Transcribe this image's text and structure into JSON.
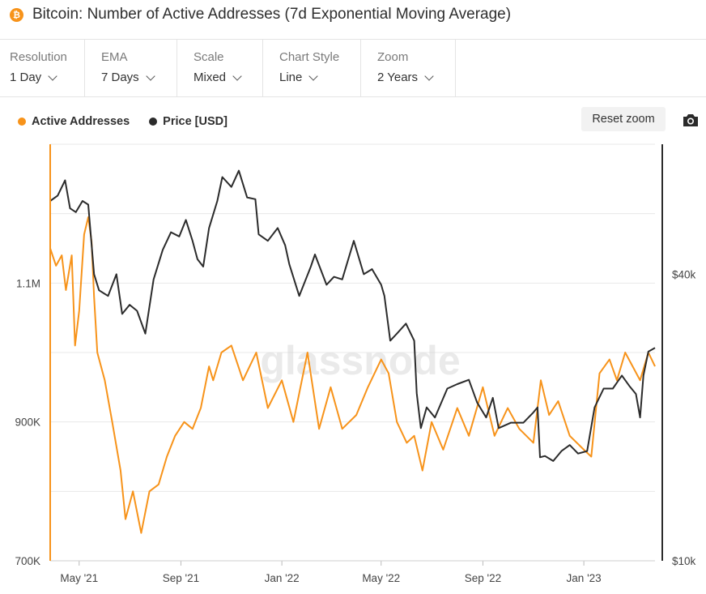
{
  "header": {
    "coin_icon": "bitcoin-icon",
    "coin_glyph": "₿",
    "title": "Bitcoin: Number of Active Addresses (7d Exponential Moving Average)"
  },
  "toolbar": {
    "controls": [
      {
        "label": "Resolution",
        "value": "1 Day"
      },
      {
        "label": "EMA",
        "value": "7 Days"
      },
      {
        "label": "Scale",
        "value": "Mixed"
      },
      {
        "label": "Chart Style",
        "value": "Line"
      },
      {
        "label": "Zoom",
        "value": "2 Years"
      }
    ]
  },
  "legend": [
    {
      "label": "Active Addresses",
      "color": "#f7931a"
    },
    {
      "label": "Price [USD]",
      "color": "#2b2b2b"
    }
  ],
  "actions": {
    "reset_zoom": "Reset zoom",
    "camera_icon": "camera-icon"
  },
  "watermark": "glassnode",
  "chart_data": {
    "type": "line",
    "x_range": [
      "2021-03-27",
      "2023-03-28"
    ],
    "x_ticks": [
      "May '21",
      "Sep '21",
      "Jan '22",
      "May '22",
      "Sep '22",
      "Jan '23"
    ],
    "y_left": {
      "scale": "linear",
      "ylim": [
        700000,
        1300000
      ],
      "ticks": [
        700000,
        900000,
        1100000
      ],
      "tick_labels": [
        "700K",
        "900K",
        "1.1M"
      ]
    },
    "y_right": {
      "scale": "log",
      "ylim": [
        10000,
        75000
      ],
      "ticks": [
        10000,
        40000
      ],
      "tick_labels": [
        "$10k",
        "$40k"
      ]
    },
    "grid": true,
    "legend_position": "top-left",
    "series": [
      {
        "name": "Active Addresses",
        "axis": "left",
        "color": "#f7931a",
        "x": [
          "2021-03-27",
          "2021-04-03",
          "2021-04-10",
          "2021-04-15",
          "2021-04-22",
          "2021-04-26",
          "2021-05-01",
          "2021-05-07",
          "2021-05-12",
          "2021-05-16",
          "2021-05-19",
          "2021-05-23",
          "2021-06-01",
          "2021-06-10",
          "2021-06-20",
          "2021-06-26",
          "2021-07-05",
          "2021-07-15",
          "2021-07-25",
          "2021-08-05",
          "2021-08-15",
          "2021-08-25",
          "2021-09-05",
          "2021-09-15",
          "2021-09-25",
          "2021-10-05",
          "2021-10-10",
          "2021-10-20",
          "2021-11-01",
          "2021-11-15",
          "2021-12-01",
          "2021-12-15",
          "2022-01-01",
          "2022-01-15",
          "2022-02-01",
          "2022-02-15",
          "2022-03-01",
          "2022-03-15",
          "2022-04-01",
          "2022-04-15",
          "2022-05-01",
          "2022-05-10",
          "2022-05-20",
          "2022-06-01",
          "2022-06-10",
          "2022-06-20",
          "2022-07-01",
          "2022-07-15",
          "2022-08-01",
          "2022-08-15",
          "2022-09-01",
          "2022-09-15",
          "2022-10-01",
          "2022-10-15",
          "2022-11-01",
          "2022-11-10",
          "2022-11-20",
          "2022-12-01",
          "2022-12-15",
          "2023-01-01",
          "2023-01-10",
          "2023-01-20",
          "2023-02-01",
          "2023-02-10",
          "2023-02-20",
          "2023-03-01",
          "2023-03-10",
          "2023-03-20",
          "2023-03-28"
        ],
        "values": [
          1150000,
          1125000,
          1140000,
          1090000,
          1140000,
          1010000,
          1060000,
          1170000,
          1195000,
          1160000,
          1080000,
          1000000,
          960000,
          900000,
          830000,
          760000,
          800000,
          740000,
          800000,
          810000,
          850000,
          880000,
          900000,
          890000,
          920000,
          980000,
          960000,
          1000000,
          1010000,
          960000,
          1000000,
          920000,
          960000,
          900000,
          1000000,
          890000,
          950000,
          890000,
          910000,
          950000,
          990000,
          970000,
          900000,
          870000,
          880000,
          830000,
          900000,
          860000,
          920000,
          880000,
          950000,
          880000,
          920000,
          890000,
          870000,
          960000,
          910000,
          930000,
          880000,
          860000,
          850000,
          970000,
          990000,
          960000,
          1000000,
          980000,
          960000,
          1000000,
          980000
        ]
      },
      {
        "name": "Price [USD]",
        "axis": "right",
        "color": "#2b2b2b",
        "x": [
          "2021-03-27",
          "2021-04-05",
          "2021-04-14",
          "2021-04-20",
          "2021-04-27",
          "2021-05-05",
          "2021-05-12",
          "2021-05-19",
          "2021-05-25",
          "2021-06-05",
          "2021-06-15",
          "2021-06-22",
          "2021-07-01",
          "2021-07-10",
          "2021-07-20",
          "2021-07-30",
          "2021-08-10",
          "2021-08-20",
          "2021-08-30",
          "2021-09-07",
          "2021-09-15",
          "2021-09-21",
          "2021-09-28",
          "2021-10-05",
          "2021-10-15",
          "2021-10-21",
          "2021-11-01",
          "2021-11-10",
          "2021-11-20",
          "2021-11-30",
          "2021-12-04",
          "2021-12-15",
          "2021-12-27",
          "2022-01-05",
          "2022-01-10",
          "2022-01-22",
          "2022-02-05",
          "2022-02-10",
          "2022-02-24",
          "2022-03-05",
          "2022-03-15",
          "2022-03-29",
          "2022-04-10",
          "2022-04-20",
          "2022-05-01",
          "2022-05-05",
          "2022-05-12",
          "2022-05-20",
          "2022-05-31",
          "2022-06-10",
          "2022-06-13",
          "2022-06-18",
          "2022-06-25",
          "2022-07-05",
          "2022-07-20",
          "2022-08-01",
          "2022-08-15",
          "2022-08-25",
          "2022-09-05",
          "2022-09-13",
          "2022-09-20",
          "2022-10-05",
          "2022-10-20",
          "2022-11-01",
          "2022-11-06",
          "2022-11-09",
          "2022-11-15",
          "2022-11-25",
          "2022-12-05",
          "2022-12-15",
          "2022-12-25",
          "2023-01-05",
          "2023-01-14",
          "2023-01-25",
          "2023-02-05",
          "2023-02-16",
          "2023-02-25",
          "2023-03-05",
          "2023-03-10",
          "2023-03-14",
          "2023-03-20",
          "2023-03-28"
        ],
        "values": [
          57000,
          58500,
          63000,
          55000,
          54000,
          57000,
          56000,
          40000,
          37000,
          36000,
          40000,
          33000,
          34500,
          33500,
          30000,
          39000,
          45000,
          49000,
          48000,
          52000,
          47000,
          43000,
          41500,
          50000,
          57000,
          64000,
          61000,
          66000,
          58000,
          57500,
          48500,
          47000,
          50000,
          46000,
          42000,
          36000,
          41500,
          44000,
          38000,
          39500,
          39000,
          47000,
          40000,
          41000,
          38000,
          36000,
          29000,
          30000,
          31500,
          29000,
          22500,
          19000,
          21000,
          20000,
          23000,
          23500,
          24000,
          21500,
          20000,
          22000,
          19000,
          19500,
          19500,
          20500,
          21000,
          16500,
          16600,
          16200,
          17000,
          17500,
          16800,
          17000,
          21000,
          23000,
          23000,
          24500,
          23300,
          22400,
          20000,
          24500,
          27500,
          28000
        ]
      }
    ]
  }
}
